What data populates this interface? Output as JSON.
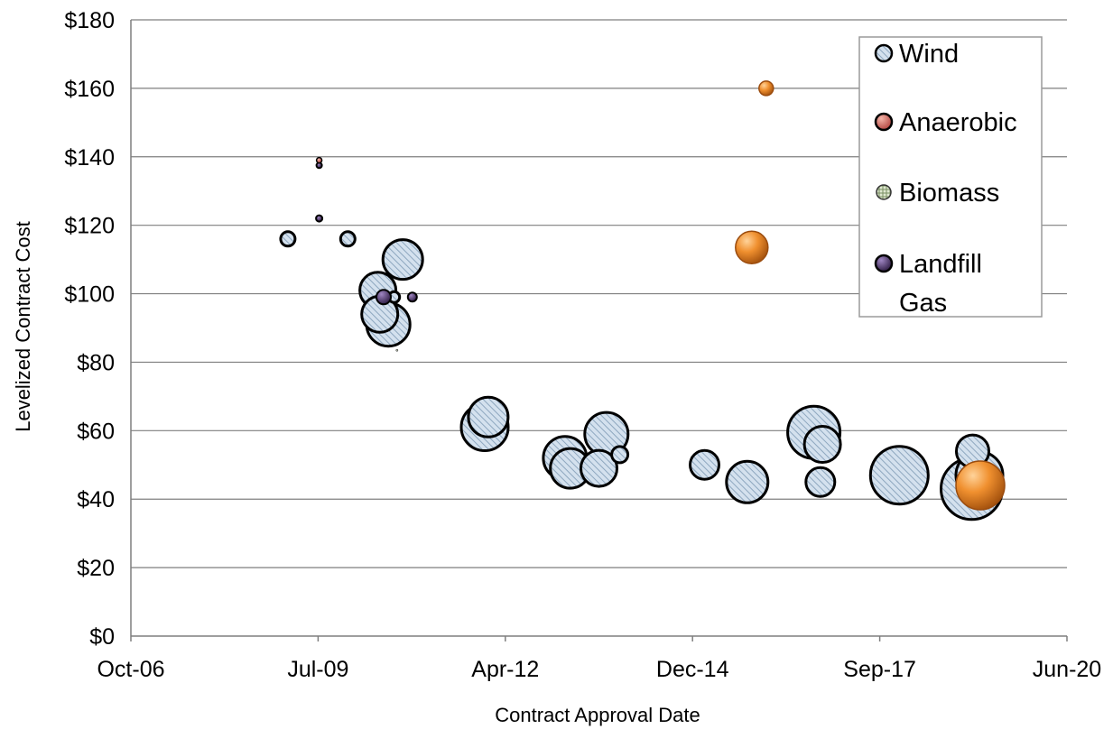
{
  "chart_data": {
    "type": "scatter",
    "xlabel": "Contract Approval Date",
    "ylabel": "Levelized Contract Cost",
    "x_ticks": [
      "Oct-06",
      "Jul-09",
      "Apr-12",
      "Dec-14",
      "Sep-17",
      "Jun-20"
    ],
    "xlim": [
      "2006-10-01",
      "2020-06-01"
    ],
    "y_ticks": [
      "$0",
      "$20",
      "$40",
      "$60",
      "$80",
      "$100",
      "$120",
      "$140",
      "$160",
      "$180"
    ],
    "ylim": [
      0,
      180
    ],
    "ystep": 20,
    "grid": "horizontal",
    "legend_position": "top-right",
    "legend": [
      {
        "label": "Wind",
        "series": "wind"
      },
      {
        "label": "Anaerobic",
        "series": "anaerobic"
      },
      {
        "label": "Biomass",
        "series": "biomass"
      },
      {
        "label": "Landfill Gas",
        "series": "landfill"
      }
    ],
    "colors": {
      "wind_fill": "#c8d8e8",
      "wind_hatch": "#8ea7bf",
      "anaerobic_fill": "#e87b7b",
      "biomass_fill": "#c9dbb4",
      "landfill_fill": "#4a2e6e",
      "orange_bubble": "#e8862a",
      "gridline": "#7f7f7f"
    },
    "series": [
      {
        "name": "Wind",
        "key": "wind",
        "points": [
          {
            "date": "2009-01-15",
            "y": 116,
            "size": 8
          },
          {
            "date": "2009-12-01",
            "y": 116,
            "size": 8
          },
          {
            "date": "2010-05-10",
            "y": 101,
            "size": 20
          },
          {
            "date": "2010-05-20",
            "y": 94,
            "size": 20
          },
          {
            "date": "2010-08-05",
            "y": 99,
            "size": 6
          },
          {
            "date": "2010-09-20",
            "y": 110,
            "size": 22
          },
          {
            "date": "2010-07-05",
            "y": 91,
            "size": 24
          },
          {
            "date": "2011-12-20",
            "y": 64,
            "size": 22
          },
          {
            "date": "2011-12-01",
            "y": 61,
            "size": 26
          },
          {
            "date": "2013-03-01",
            "y": 49,
            "size": 22
          },
          {
            "date": "2013-02-01",
            "y": 52,
            "size": 24
          },
          {
            "date": "2013-09-10",
            "y": 59,
            "size": 24
          },
          {
            "date": "2013-08-01",
            "y": 49,
            "size": 20
          },
          {
            "date": "2013-11-20",
            "y": 53,
            "size": 9
          },
          {
            "date": "2015-02-15",
            "y": 50,
            "size": 16
          },
          {
            "date": "2015-10-01",
            "y": 45,
            "size": 23
          },
          {
            "date": "2016-11-05",
            "y": 56,
            "size": 20
          },
          {
            "date": "2016-09-20",
            "y": 59.5,
            "size": 29
          },
          {
            "date": "2016-10-25",
            "y": 45,
            "size": 16
          },
          {
            "date": "2017-12-20",
            "y": 47,
            "size": 32
          },
          {
            "date": "2019-02-20",
            "y": 47,
            "size": 26
          },
          {
            "date": "2019-01-10",
            "y": 43,
            "size": 34
          },
          {
            "date": "2019-01-15",
            "y": 54,
            "size": 18
          }
        ]
      },
      {
        "name": "Anaerobic",
        "key": "anaerobic",
        "points": [
          {
            "date": "2009-07-01",
            "y": 139,
            "size": 3
          }
        ]
      },
      {
        "name": "Biomass",
        "key": "biomass",
        "points": [
          {
            "date": "2010-08-20",
            "y": 83.5,
            "size": 1
          }
        ]
      },
      {
        "name": "Landfill Gas",
        "key": "landfill",
        "points": [
          {
            "date": "2009-07-01",
            "y": 137.5,
            "size": 3
          },
          {
            "date": "2009-07-01",
            "y": 122,
            "size": 3.5
          },
          {
            "date": "2010-06-10",
            "y": 99,
            "size": 8
          },
          {
            "date": "2010-11-10",
            "y": 99,
            "size": 5
          }
        ]
      },
      {
        "name": "",
        "key": "orange",
        "points": [
          {
            "date": "2016-01-10",
            "y": 160,
            "size": 8
          },
          {
            "date": "2015-10-25",
            "y": 113.5,
            "size": 18
          },
          {
            "date": "2019-02-25",
            "y": 44,
            "size": 27
          }
        ]
      }
    ]
  }
}
